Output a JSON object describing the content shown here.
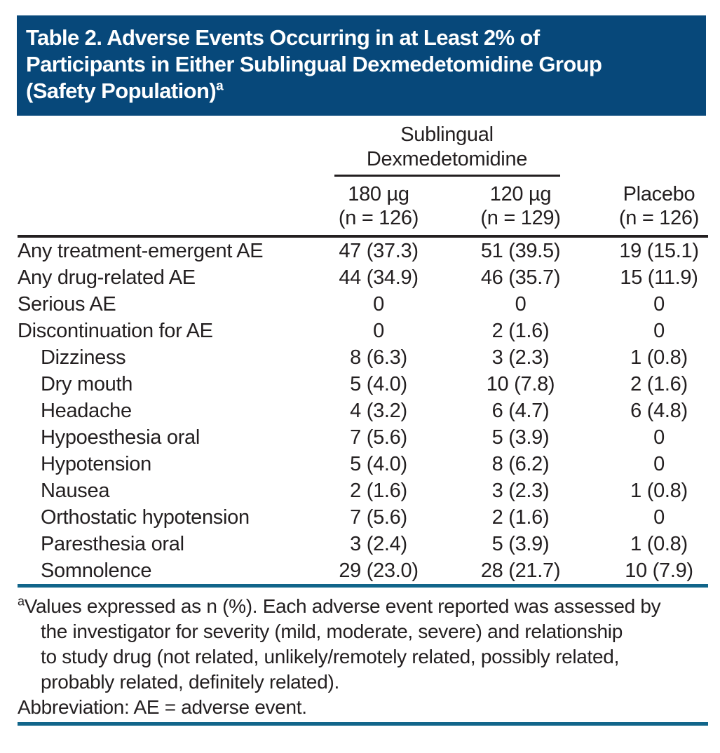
{
  "title": {
    "line1": "Table 2. Adverse Events Occurring in at Least 2% of",
    "line2": "Participants in Either Sublingual Dexmedetomidine Group",
    "line3": "(Safety Population)",
    "superscript": "a"
  },
  "table": {
    "spanner": {
      "line1": "Sublingual",
      "line2": "Dexmedetomidine"
    },
    "columns": [
      {
        "dose": "180 µg",
        "n": "(n = 126)"
      },
      {
        "dose": "120 µg",
        "n": "(n = 129)"
      },
      {
        "dose": "Placebo",
        "n": "(n = 126)"
      }
    ],
    "rows": [
      {
        "label": "Any treatment-emergent AE",
        "indent": false,
        "values": [
          "47 (37.3)",
          "51 (39.5)",
          "19 (15.1)"
        ]
      },
      {
        "label": "Any drug-related AE",
        "indent": false,
        "values": [
          "44 (34.9)",
          "46 (35.7)",
          "15 (11.9)"
        ]
      },
      {
        "label": "Serious AE",
        "indent": false,
        "values": [
          "0",
          "0",
          "0"
        ]
      },
      {
        "label": "Discontinuation for AE",
        "indent": false,
        "values": [
          "0",
          "2 (1.6)",
          "0"
        ]
      },
      {
        "label": "Dizziness",
        "indent": true,
        "values": [
          "8 (6.3)",
          "3 (2.3)",
          "1 (0.8)"
        ]
      },
      {
        "label": "Dry mouth",
        "indent": true,
        "values": [
          "5 (4.0)",
          "10 (7.8)",
          "2 (1.6)"
        ]
      },
      {
        "label": "Headache",
        "indent": true,
        "values": [
          "4 (3.2)",
          "6 (4.7)",
          "6 (4.8)"
        ]
      },
      {
        "label": "Hypoesthesia oral",
        "indent": true,
        "values": [
          "7 (5.6)",
          "5 (3.9)",
          "0"
        ]
      },
      {
        "label": "Hypotension",
        "indent": true,
        "values": [
          "5 (4.0)",
          "8 (6.2)",
          "0"
        ]
      },
      {
        "label": "Nausea",
        "indent": true,
        "values": [
          "2 (1.6)",
          "3 (2.3)",
          "1 (0.8)"
        ]
      },
      {
        "label": "Orthostatic hypotension",
        "indent": true,
        "values": [
          "7 (5.6)",
          "2 (1.6)",
          "0"
        ]
      },
      {
        "label": "Paresthesia oral",
        "indent": true,
        "values": [
          "3 (2.4)",
          "5 (3.9)",
          "1 (0.8)"
        ]
      },
      {
        "label": "Somnolence",
        "indent": true,
        "values": [
          "29 (23.0)",
          "28 (21.7)",
          "10 (7.9)"
        ]
      }
    ]
  },
  "footnote": {
    "superscript": "a",
    "lines": [
      "Values expressed as n (%). Each adverse event reported was assessed by",
      "the investigator for severity (mild, moderate, severe) and relationship",
      "to study drug (not related, unlikely/remotely related, possibly related,",
      "probably related, definitely related)."
    ],
    "abbreviation": "Abbreviation: AE = adverse event."
  },
  "colors": {
    "title_bg": "#07487a",
    "title_text": "#ffffff",
    "rule_dark": "#231f20",
    "rule_teal": "#11658a",
    "text": "#231f20",
    "page_bg": "#ffffff"
  }
}
